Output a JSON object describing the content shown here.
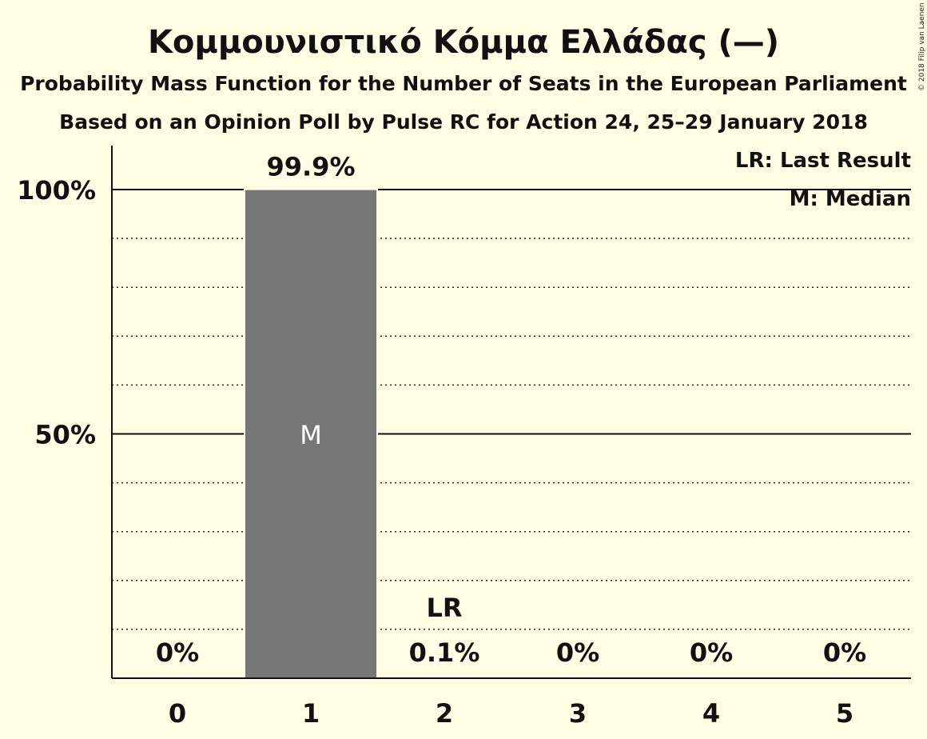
{
  "chart_data": {
    "type": "bar",
    "title": "Κομμουνιστικό Κόμμα Ελλάδας (—)",
    "subtitle": "Probability Mass Function for the Number of Seats in the European Parliament",
    "subtitle2": "Based on an Opinion Poll by Pulse RC for Action 24, 25–29 January 2018",
    "copyright": "© 2018 Filip van Laenen",
    "categories": [
      "0",
      "1",
      "2",
      "3",
      "4",
      "5"
    ],
    "values": [
      0,
      99.9,
      0.1,
      0,
      0,
      0
    ],
    "value_labels": [
      "0%",
      "99.9%",
      "0.1%",
      "0%",
      "0%",
      "0%"
    ],
    "ylim": [
      0,
      100
    ],
    "yticks": [
      {
        "value": 50,
        "label": "50%"
      },
      {
        "value": 100,
        "label": "100%"
      }
    ],
    "minor_grid_step": 10,
    "bar_color": "#777777",
    "median_index": 1,
    "median_label": "M",
    "last_result_index": 2,
    "last_result_label": "LR",
    "legend": [
      "LR: Last Result",
      "M: Median"
    ],
    "legend_position": "top-right"
  }
}
